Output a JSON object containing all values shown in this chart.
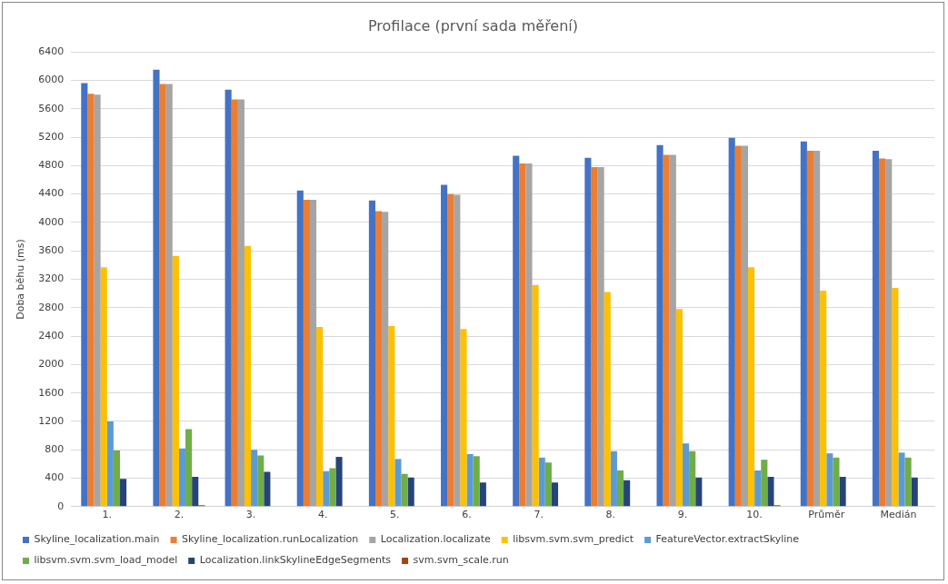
{
  "chart_data": {
    "type": "bar",
    "title": "Profilace (první sada měření)",
    "ylabel": "Doba běhu (ms)",
    "categories": [
      "1.",
      "2.",
      "3.",
      "4.",
      "5.",
      "6.",
      "7.",
      "8.",
      "9.",
      "10.",
      "Průměr",
      "Medián"
    ],
    "series": [
      {
        "name": "Skyline_localization.main",
        "color": "#4472c4",
        "values": [
          5960,
          6150,
          5870,
          4450,
          4310,
          4530,
          4940,
          4910,
          5090,
          5190,
          5140,
          5010
        ]
      },
      {
        "name": "Skyline_localization.runLocalization",
        "color": "#ed7d31",
        "values": [
          5810,
          5950,
          5730,
          4320,
          4160,
          4400,
          4830,
          4780,
          4950,
          5080,
          5010,
          4900
        ]
      },
      {
        "name": "Localization.localizate",
        "color": "#a5a5a5",
        "values": [
          5800,
          5950,
          5730,
          4320,
          4150,
          4390,
          4830,
          4780,
          4950,
          5080,
          5010,
          4890
        ]
      },
      {
        "name": "libsvm.svm.svm_predict",
        "color": "#ffc000",
        "values": [
          3370,
          3530,
          3670,
          2530,
          2540,
          2500,
          3120,
          3020,
          2780,
          3370,
          3040,
          3080
        ]
      },
      {
        "name": "FeatureVector.extractSkyline",
        "color": "#5b9bd5",
        "values": [
          1200,
          820,
          800,
          500,
          670,
          740,
          690,
          780,
          890,
          510,
          750,
          760
        ]
      },
      {
        "name": "libsvm.svm.svm_load_model",
        "color": "#70ad47",
        "values": [
          790,
          1090,
          720,
          540,
          460,
          710,
          620,
          510,
          780,
          660,
          690,
          690
        ]
      },
      {
        "name": "Localization.linkSkylineEdgeSegments",
        "color": "#264478",
        "values": [
          390,
          420,
          490,
          700,
          410,
          340,
          340,
          370,
          410,
          420,
          420,
          410
        ]
      },
      {
        "name": "svm.svm_scale.run",
        "color": "#9e480e",
        "values": [
          0,
          20,
          0,
          0,
          0,
          0,
          0,
          0,
          0,
          20,
          0,
          0
        ]
      }
    ],
    "ylim": [
      0,
      6400
    ],
    "yticks": [
      0,
      400,
      800,
      1200,
      1600,
      2000,
      2400,
      2800,
      3200,
      3600,
      4000,
      4400,
      4800,
      5200,
      5600,
      6000,
      6400
    ],
    "grid": "y",
    "legend": "bottom"
  }
}
